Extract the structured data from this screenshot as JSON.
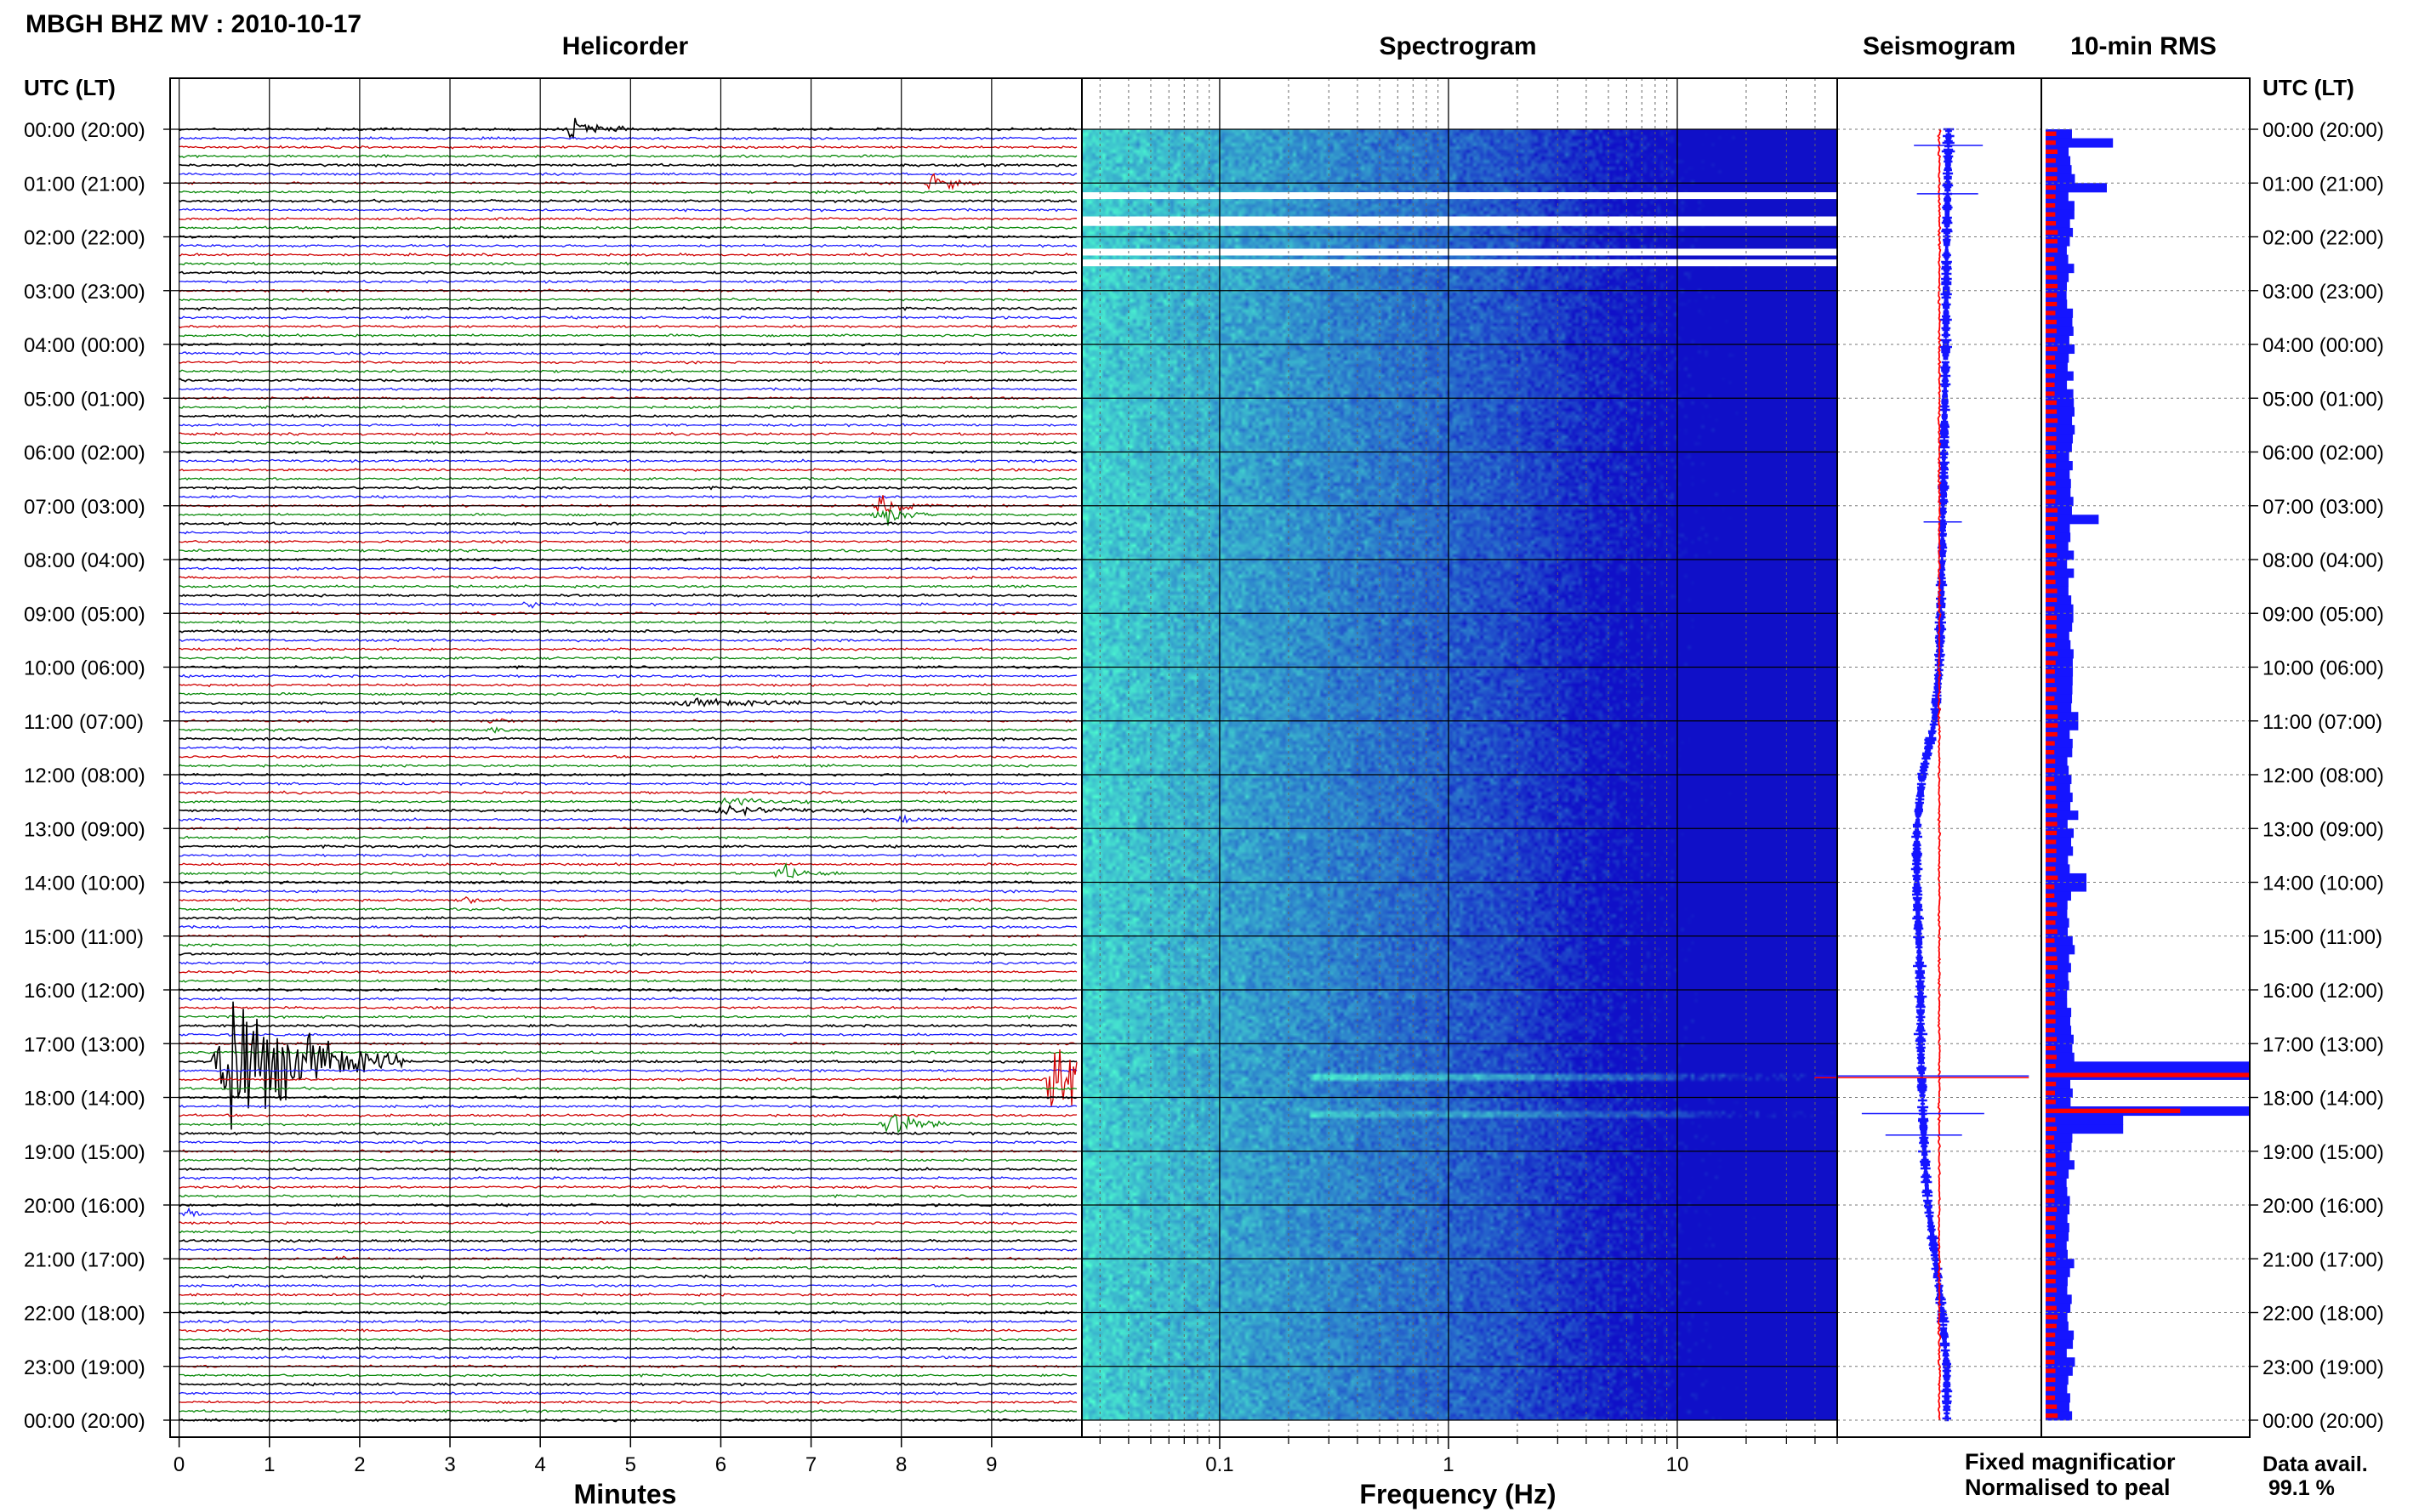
{
  "header": {
    "station_title": "MBGH BHZ MV : 2010-10-17"
  },
  "panels": {
    "helicorder": "Helicorder",
    "spectrogram": "Spectrogram",
    "seismogram": "Seismogram",
    "rms": "10-min RMS"
  },
  "time_axis": {
    "header": "UTC (LT)",
    "labels": [
      "00:00 (20:00)",
      "01:00 (21:00)",
      "02:00 (22:00)",
      "03:00 (23:00)",
      "04:00 (00:00)",
      "05:00 (01:00)",
      "06:00 (02:00)",
      "07:00 (03:00)",
      "08:00 (04:00)",
      "09:00 (05:00)",
      "10:00 (06:00)",
      "11:00 (07:00)",
      "12:00 (08:00)",
      "13:00 (09:00)",
      "14:00 (10:00)",
      "15:00 (11:00)",
      "16:00 (12:00)",
      "17:00 (13:00)",
      "18:00 (14:00)",
      "19:00 (15:00)",
      "20:00 (16:00)",
      "21:00 (17:00)",
      "22:00 (18:00)",
      "23:00 (19:00)",
      "00:00 (20:00)"
    ]
  },
  "legend": {
    "fixed": "Fixed magnificatior",
    "normalised": "Normalised to peal",
    "fixed_color": "#1515ff",
    "normalised_color": "#ff0000"
  },
  "availability": {
    "label": "Data avail.",
    "value": "99.1 %"
  },
  "colors": {
    "trace_cycle": [
      "#000000",
      "#1b1bff",
      "#d00000",
      "#0a8a0a"
    ],
    "spec_low": "#1010c8",
    "spec_high": "#4dffd0",
    "rms_fixed": "#1515ff",
    "rms_norm": "#ff0000"
  },
  "chart_data": [
    {
      "type": "line",
      "panel": "Helicorder",
      "xlabel": "Minutes",
      "xlim": [
        -0.1,
        10.0
      ],
      "x_ticks": [
        0,
        1,
        2,
        3,
        4,
        5,
        6,
        7,
        8,
        9
      ],
      "y_unit": "hours UTC",
      "lines_per_hour": 6,
      "line_count": 145,
      "events": [
        {
          "hour": 0.0,
          "minute": 4.4,
          "amplitude": 0.4,
          "width": 0.6
        },
        {
          "hour": 1.0,
          "minute": 8.4,
          "amplitude": 0.5,
          "width": 0.5
        },
        {
          "hour": 7.1,
          "minute": 7.8,
          "amplitude": 0.35,
          "width": 0.6
        },
        {
          "hour": 8.8,
          "minute": 3.9,
          "amplitude": 0.1,
          "width": 0.5
        },
        {
          "hour": 10.7,
          "minute": 5.6,
          "amplitude": 0.12,
          "width": 2.5
        },
        {
          "hour": 11.1,
          "minute": 3.5,
          "amplitude": 0.08,
          "width": 0.4
        },
        {
          "hour": 12.6,
          "minute": 6.0,
          "amplitude": 0.14,
          "width": 1.6
        },
        {
          "hour": 12.8,
          "minute": 8.0,
          "amplitude": 0.1,
          "width": 0.5
        },
        {
          "hour": 13.8,
          "minute": 6.7,
          "amplitude": 0.25,
          "width": 0.7
        },
        {
          "hour": 14.3,
          "minute": 3.2,
          "amplitude": 0.15,
          "width": 0.4
        },
        {
          "hour": 17.35,
          "minute": 0.5,
          "amplitude": 3.2,
          "width": 2.0
        },
        {
          "hour": 17.7,
          "minute": 9.7,
          "amplitude": 1.8,
          "width": 0.9
        },
        {
          "hour": 18.5,
          "minute": 7.9,
          "amplitude": 0.4,
          "width": 0.9
        },
        {
          "hour": 20.2,
          "minute": 0.1,
          "amplitude": 0.15,
          "width": 0.3
        },
        {
          "hour": 21.0,
          "minute": 1.8,
          "amplitude": 0.08,
          "width": 0.4
        }
      ]
    },
    {
      "type": "heatmap",
      "panel": "Spectrogram",
      "xlabel": "Frequency (Hz)",
      "x_scale": "log",
      "xlim": [
        0.025,
        50
      ],
      "x_ticks": [
        0.1,
        1,
        10
      ],
      "x_tick_labels": [
        "0.1",
        "1",
        "10"
      ],
      "gaps_hours": [
        1.25,
        1.7,
        1.75,
        2.3,
        2.5
      ]
    },
    {
      "type": "line",
      "panel": "Seismogram",
      "series": [
        {
          "name": "Fixed magnificatior",
          "color": "#1515ff",
          "hours": [
            0,
            2,
            4,
            6,
            8,
            10,
            11,
            12,
            13,
            14,
            15,
            16,
            17,
            18,
            19,
            20,
            21,
            22,
            23,
            24
          ],
          "offset": [
            0.1,
            0.08,
            0.07,
            0.05,
            0.03,
            0.0,
            -0.05,
            -0.18,
            -0.24,
            -0.24,
            -0.22,
            -0.2,
            -0.2,
            -0.18,
            -0.16,
            -0.12,
            -0.04,
            0.03,
            0.08,
            0.08
          ],
          "spikes": [
            {
              "hour": 0.3,
              "size": 0.9
            },
            {
              "hour": 1.2,
              "size": 0.8
            },
            {
              "hour": 7.3,
              "size": 0.5
            },
            {
              "hour": 17.6,
              "size": 2.8
            },
            {
              "hour": 18.7,
              "size": 1.0
            },
            {
              "hour": 18.3,
              "size": 1.6
            }
          ]
        },
        {
          "name": "Normalised to peal",
          "color": "#ff0000",
          "hours": [
            0,
            24
          ],
          "offset": [
            0.0,
            0.0
          ]
        }
      ]
    },
    {
      "type": "bar",
      "panel": "10-min RMS",
      "orientation": "horizontal",
      "bin_minutes": 10,
      "series": [
        {
          "name": "Fixed magnificatior",
          "color": "#1515ff",
          "base_level": 0.12,
          "peaks": [
            {
              "hour": 0.2,
              "value": 0.33
            },
            {
              "hour": 1.1,
              "value": 0.3
            },
            {
              "hour": 7.2,
              "value": 0.26
            },
            {
              "hour": 11.0,
              "value": 0.16
            },
            {
              "hour": 12.8,
              "value": 0.16
            },
            {
              "hour": 14.0,
              "value": 0.2
            },
            {
              "hour": 17.5,
              "value": 1.0
            },
            {
              "hour": 18.2,
              "value": 1.0
            },
            {
              "hour": 18.5,
              "value": 0.38
            }
          ]
        },
        {
          "name": "Normalised to peal",
          "color": "#ff0000",
          "base_level": 0.05,
          "peaks": [
            {
              "hour": 17.6,
              "value": 1.0
            },
            {
              "hour": 18.2,
              "value": 0.66
            }
          ]
        }
      ]
    }
  ]
}
